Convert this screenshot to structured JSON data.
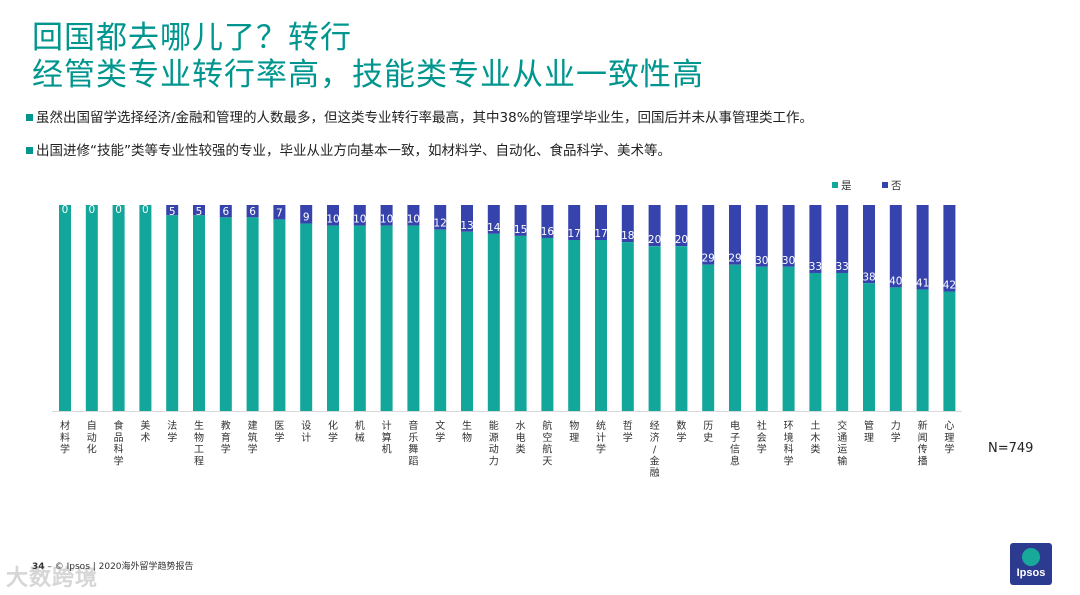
{
  "page": {
    "title_line1": "回国都去哪儿了？转行",
    "title_line2": "经管类专业转行率高，技能类专业从业一致性高",
    "bullets": [
      "虽然出国留学选择经济/金融和管理的人数最多，但这类专业转行率最高，其中38%的管理学毕业生，回国后并未从事管理类工作。",
      "出国进修“技能”类等专业性较强的专业，毕业从业方向基本一致，如材料学、自动化、食品科学、美术等。"
    ],
    "sample_note": "N=749",
    "footer": {
      "page_number": "34",
      "copyright": "– © Ipsos | 2020海外留学趋势报告"
    },
    "watermark": "大数跨境",
    "logo_text": "Ipsos"
  },
  "colors": {
    "yes": "#12a79a",
    "no": "#3643ac",
    "title": "#00968f"
  },
  "chart_data": {
    "type": "bar",
    "stacked": true,
    "legend_position": "top-right",
    "ylim": [
      0,
      100
    ],
    "categories": [
      "材料学",
      "自动化",
      "食品科学",
      "美术",
      "法学",
      "生物工程",
      "教育学",
      "建筑学",
      "医学",
      "设计",
      "化学",
      "机械",
      "计算机",
      "音乐舞蹈",
      "文学",
      "生物",
      "能源动力",
      "水电类",
      "航空航天",
      "物理",
      "统计学",
      "哲学",
      "经济/金融",
      "数学",
      "历史",
      "电子信息",
      "社会学",
      "环境科学",
      "土木类",
      "交通运输",
      "管理",
      "力学",
      "新闻传播",
      "心理学"
    ],
    "series": [
      {
        "name": "是",
        "color": "#12a79a",
        "values": [
          100,
          100,
          100,
          100,
          95,
          95,
          94,
          94,
          93,
          91,
          90,
          90,
          90,
          90,
          88,
          87,
          86,
          85,
          84,
          83,
          83,
          82,
          80,
          80,
          71,
          71,
          70,
          70,
          67,
          67,
          62,
          60,
          59,
          58
        ]
      },
      {
        "name": "否",
        "color": "#3643ac",
        "values": [
          0,
          0,
          0,
          0,
          5,
          5,
          6,
          6,
          7,
          9,
          10,
          10,
          10,
          10,
          12,
          13,
          14,
          15,
          16,
          17,
          17,
          18,
          20,
          20,
          29,
          29,
          30,
          30,
          33,
          33,
          38,
          40,
          41,
          42
        ]
      }
    ]
  }
}
